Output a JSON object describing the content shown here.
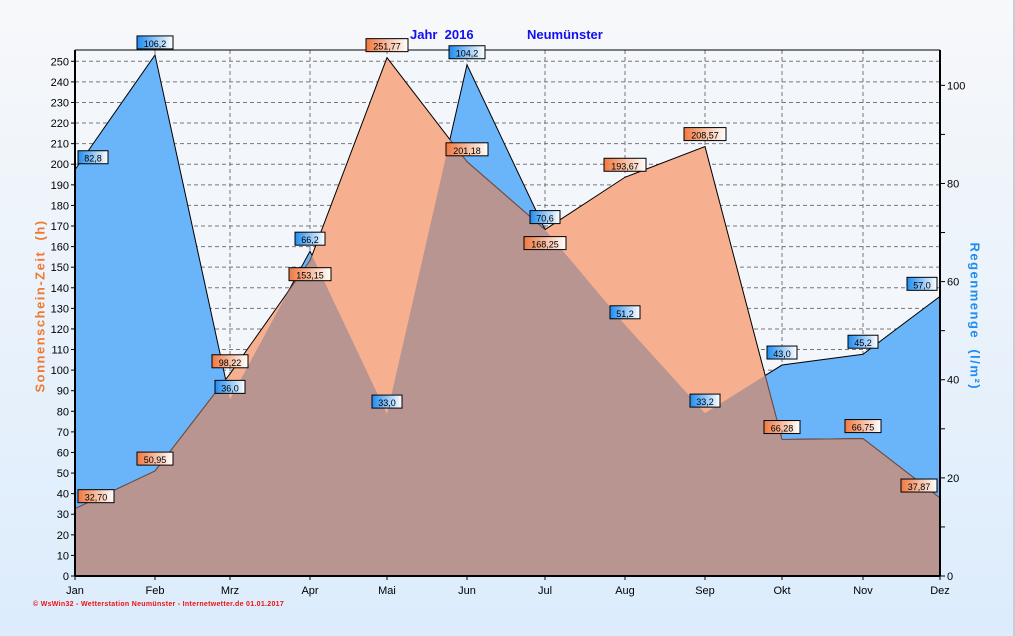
{
  "chart_data": {
    "type": "area",
    "title": "Jahr  2016",
    "subtitle": "Neumünster",
    "footer": "© WsWin32  -  Wetterstation Neumünster  -  Internetwetter.de  01.01.2017",
    "categories": [
      "Jan",
      "Feb",
      "Mrz",
      "Apr",
      "Mai",
      "Jun",
      "Jul",
      "Aug",
      "Sep",
      "Okt",
      "Nov",
      "Dez"
    ],
    "ylabel_left": "Sonnenschein-Zeit  (h)",
    "ylabel_right": "Regenmenge  (l/m²)",
    "ylim_left": [
      0,
      255
    ],
    "ylim_right": [
      0,
      107
    ],
    "yticks_left": [
      0,
      10,
      20,
      30,
      40,
      50,
      60,
      70,
      80,
      90,
      100,
      110,
      120,
      130,
      140,
      150,
      160,
      170,
      180,
      190,
      200,
      210,
      220,
      230,
      240,
      250
    ],
    "yticks_right": [
      0,
      20,
      40,
      60,
      80,
      100
    ],
    "grid": true,
    "series": [
      {
        "name": "Regenmenge",
        "axis": "right",
        "color": "#6ab4fa",
        "values": [
          82.8,
          106.2,
          36.0,
          66.2,
          33.0,
          104.2,
          70.6,
          51.2,
          33.2,
          43.0,
          45.2,
          57.0
        ],
        "labels": [
          "82,8",
          "106,2",
          "36,0",
          "66,2",
          "33,0",
          "104,2",
          "70,6",
          "51,2",
          "33,2",
          "43,0",
          "45,2",
          "57,0"
        ]
      },
      {
        "name": "Sonnenschein-Zeit",
        "axis": "left",
        "color": "#f7b08f",
        "values": [
          32.7,
          50.95,
          98.22,
          153.15,
          251.77,
          201.18,
          168.25,
          193.67,
          208.57,
          66.28,
          66.75,
          37.87
        ],
        "labels": [
          "32,70",
          "50,95",
          "98,22",
          "153,15",
          "251,77",
          "201,18",
          "168,25",
          "193,67",
          "208,57",
          "66,28",
          "66,75",
          "37,87"
        ]
      }
    ],
    "overlap_color": "#b99591"
  }
}
